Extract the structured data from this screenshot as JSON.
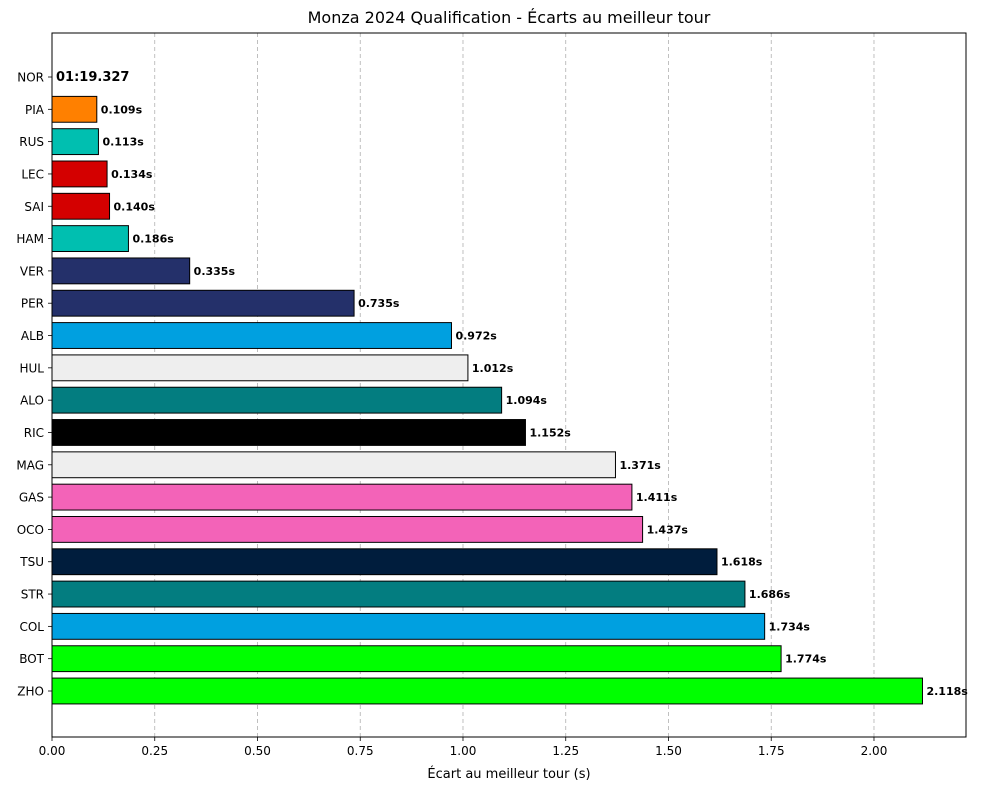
{
  "chart_data": {
    "type": "bar",
    "orientation": "horizontal",
    "title": "Monza 2024 Qualification - Écarts au meilleur tour",
    "xlabel": "Écart au meilleur tour (s)",
    "ylabel": "",
    "xlim": [
      0,
      2.2239
    ],
    "xticks": [
      "0.00",
      "0.25",
      "0.50",
      "0.75",
      "1.00",
      "1.25",
      "1.50",
      "1.75",
      "2.00"
    ],
    "grid": "x-dashed",
    "pole": {
      "driver": "NOR",
      "time": "01:19.327"
    },
    "categories": [
      "NOR",
      "PIA",
      "RUS",
      "LEC",
      "SAI",
      "HAM",
      "VER",
      "PER",
      "ALB",
      "HUL",
      "ALO",
      "RIC",
      "MAG",
      "GAS",
      "OCO",
      "TSU",
      "STR",
      "COL",
      "BOT",
      "ZHO"
    ],
    "values": [
      0,
      0.109,
      0.113,
      0.134,
      0.14,
      0.186,
      0.335,
      0.735,
      0.972,
      1.012,
      1.094,
      1.152,
      1.371,
      1.411,
      1.437,
      1.618,
      1.686,
      1.734,
      1.774,
      2.118
    ],
    "labels": [
      "01:19.327",
      "0.109s",
      "0.113s",
      "0.134s",
      "0.140s",
      "0.186s",
      "0.335s",
      "0.735s",
      "0.972s",
      "1.012s",
      "1.094s",
      "1.152s",
      "1.371s",
      "1.411s",
      "1.437s",
      "1.618s",
      "1.686s",
      "1.734s",
      "1.774s",
      "2.118s"
    ],
    "colors": [
      "#ff8000",
      "#ff8000",
      "#00bfb0",
      "#d40000",
      "#d40000",
      "#00bfb0",
      "#24306a",
      "#24306a",
      "#00a0e0",
      "#eeeeee",
      "#037d80",
      "#000000",
      "#eeeeee",
      "#f363b8",
      "#f363b8",
      "#001d3d",
      "#037d80",
      "#00a0e0",
      "#00ff00",
      "#00ff00"
    ]
  }
}
